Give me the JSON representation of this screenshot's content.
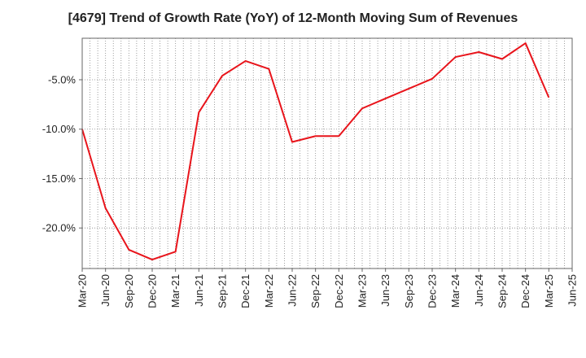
{
  "chart_data": {
    "type": "line",
    "title": "[4679]  Trend of Growth Rate (YoY) of 12-Month Moving Sum of Revenues",
    "xlabel": "",
    "ylabel": "",
    "x": [
      "Mar-20",
      "Jun-20",
      "Sep-20",
      "Dec-20",
      "Mar-21",
      "Jun-21",
      "Sep-21",
      "Dec-21",
      "Mar-22",
      "Jun-22",
      "Sep-22",
      "Dec-22",
      "Mar-23",
      "Jun-23",
      "Sep-23",
      "Dec-23",
      "Mar-24",
      "Jun-24",
      "Sep-24",
      "Dec-24",
      "Mar-25"
    ],
    "x_tick_labels": [
      "Mar-20",
      "Jun-20",
      "Sep-20",
      "Dec-20",
      "Mar-21",
      "Jun-21",
      "Sep-21",
      "Dec-21",
      "Mar-22",
      "Jun-22",
      "Sep-22",
      "Dec-22",
      "Mar-23",
      "Jun-23",
      "Sep-23",
      "Dec-23",
      "Mar-24",
      "Jun-24",
      "Sep-24",
      "Dec-24",
      "Mar-25",
      "Jun-25"
    ],
    "series": [
      {
        "color": "#e8141b",
        "values": [
          -10.0,
          -18.0,
          -22.2,
          -23.2,
          -22.4,
          -8.3,
          -4.6,
          -3.1,
          -3.9,
          -11.3,
          -10.7,
          -10.7,
          -7.9,
          -6.9,
          -5.9,
          -4.9,
          -2.7,
          -2.2,
          -2.9,
          -1.3,
          -6.8
        ]
      }
    ],
    "ylim": [
      -24.1,
      -0.8
    ],
    "y_ticks": [
      -5.0,
      -10.0,
      -15.0,
      -20.0
    ],
    "y_tick_labels": [
      "-5.0%",
      "-10.0%",
      "-15.0%",
      "-20.0%"
    ],
    "grid": true,
    "grid_style": "dotted",
    "legend": "none"
  }
}
